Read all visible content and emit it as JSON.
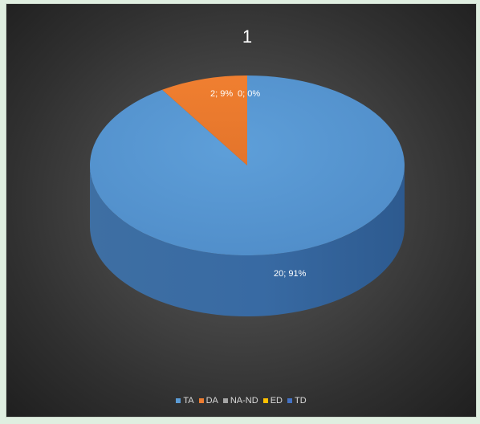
{
  "chart_data": {
    "type": "pie",
    "title": "1",
    "slices": [
      {
        "name": "TA",
        "value": 20,
        "percent": "91%",
        "label": "20; 91%",
        "color": "#5b9bd5"
      },
      {
        "name": "DA",
        "value": 2,
        "percent": "9%",
        "label": "2; 9%",
        "color": "#ed7d31"
      },
      {
        "name": "NA-ND",
        "value": 0,
        "percent": "0%",
        "label": "0; 0%",
        "color": "#a5a5a5"
      },
      {
        "name": "ED",
        "value": 0,
        "percent": "0%",
        "label": "",
        "color": "#ffc000"
      },
      {
        "name": "TD",
        "value": 0,
        "percent": "0%",
        "label": "",
        "color": "#4472c4"
      }
    ],
    "legend": [
      "TA",
      "DA",
      "NA-ND",
      "ED",
      "TD"
    ],
    "legend_position": "bottom",
    "style": "3d-pie"
  }
}
